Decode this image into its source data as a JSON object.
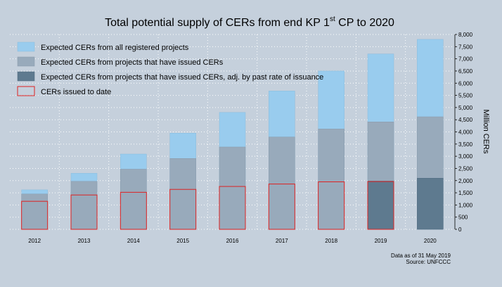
{
  "chart_data": {
    "type": "bar",
    "title": "Total potential supply of CERs from end KP 1",
    "title_sup": "st",
    "title_tail": " CP to 2020",
    "ylabel": "Million CERs",
    "ylim": [
      0,
      8000
    ],
    "yticks": [
      "0",
      "500",
      "1,000",
      "1,500",
      "2,000",
      "2,500",
      "3,000",
      "3,500",
      "4,000",
      "4,500",
      "5,000",
      "5,500",
      "6,000",
      "6,500",
      "7,000",
      "7,500",
      "8,000"
    ],
    "categories": [
      "2012",
      "2013",
      "2014",
      "2015",
      "2016",
      "2017",
      "2018",
      "2019",
      "2020"
    ],
    "grid": true,
    "legend_placement": "top-left",
    "series": [
      {
        "name": "Expected CERs from all registered projects",
        "color": "#99ccee",
        "values": [
          1620,
          2300,
          3090,
          3950,
          4800,
          5680,
          6500,
          7200,
          7800
        ]
      },
      {
        "name": "Expected CERs from projects that have issued CERs",
        "color": "#98aabb",
        "values": [
          1450,
          1970,
          2470,
          2910,
          3380,
          3790,
          4120,
          4410,
          4620
        ]
      },
      {
        "name": "Expected CERs from projects that have issued CERs, adj. by past rate of issuance",
        "color": "#5e7a8f",
        "values": [
          null,
          null,
          null,
          null,
          null,
          null,
          null,
          1980,
          2100
        ]
      },
      {
        "name": "CERs issued to date",
        "color": "#dd2222",
        "values": [
          1150,
          1410,
          1520,
          1640,
          1760,
          1860,
          1950,
          1960,
          null
        ]
      }
    ],
    "footnote_1": "Data as of 31 May 2019",
    "footnote_2": "Source: UNFCCC"
  }
}
